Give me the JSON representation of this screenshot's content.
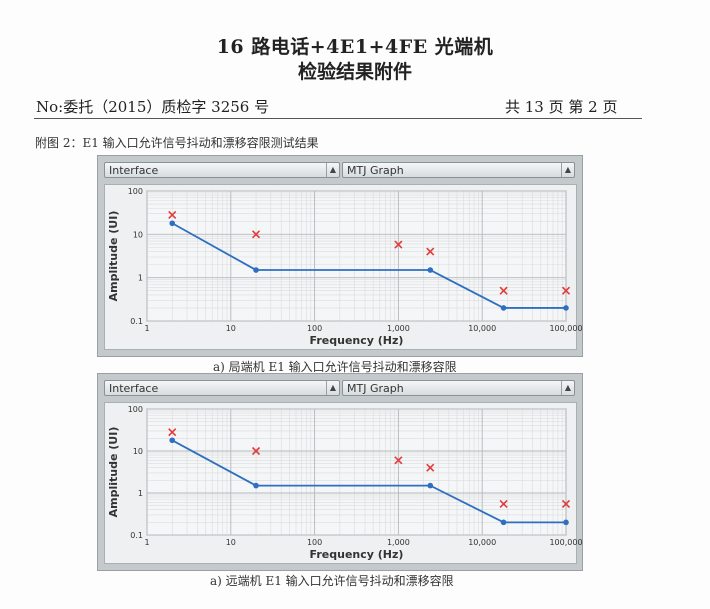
{
  "document": {
    "title_line1": "16 路电话+4E1+4FE 光端机",
    "title_line2": "检验结果附件",
    "doc_number": "No:委托（2015）质检字 3256 号",
    "page_info": "共 13 页  第 2 页",
    "figure_caption": "附图 2：E1 输入口允许信号抖动和漂移容限测试结果"
  },
  "panels": [
    {
      "dropdown_left": "Interface",
      "dropdown_right": "MTJ Graph",
      "caption": "a)  局端机 E1 输入口允许信号抖动和漂移容限"
    },
    {
      "dropdown_left": "Interface",
      "dropdown_right": "MTJ Graph",
      "caption": "a)  远端机 E1 输入口允许信号抖动和漂移容限"
    }
  ],
  "chart_data": [
    {
      "type": "line",
      "xlabel": "Frequency (Hz)",
      "ylabel": "Amplitude (UI)",
      "x_scale": "log",
      "y_scale": "log",
      "xlim": [
        1,
        100000
      ],
      "ylim": [
        0.1,
        100
      ],
      "x_ticks": [
        "1",
        "10",
        "100",
        "1,000",
        "10,000",
        "100,000"
      ],
      "y_ticks": [
        "100",
        "10",
        "1",
        "0.1"
      ],
      "grid": true,
      "series": [
        {
          "kind": "mask",
          "color": "#2e6fc0",
          "x": [
            2,
            20,
            2400,
            18000,
            100000
          ],
          "y": [
            18,
            1.5,
            1.5,
            0.2,
            0.2
          ]
        },
        {
          "kind": "measured",
          "color": "#e23b3b",
          "marker": "x",
          "x": [
            2,
            20,
            1000,
            2400,
            18000,
            100000
          ],
          "y": [
            28,
            10,
            5.8,
            4,
            0.5,
            0.5
          ]
        }
      ]
    },
    {
      "type": "line",
      "xlabel": "Frequency (Hz)",
      "ylabel": "Amplitude (UI)",
      "x_scale": "log",
      "y_scale": "log",
      "xlim": [
        1,
        100000
      ],
      "ylim": [
        0.1,
        100
      ],
      "x_ticks": [
        "1",
        "10",
        "100",
        "1,000",
        "10,000",
        "100,000"
      ],
      "y_ticks": [
        "100",
        "10",
        "1",
        "0.1"
      ],
      "grid": true,
      "series": [
        {
          "kind": "mask",
          "color": "#2e6fc0",
          "x": [
            2,
            20,
            2400,
            18000,
            100000
          ],
          "y": [
            18,
            1.5,
            1.5,
            0.2,
            0.2
          ]
        },
        {
          "kind": "measured",
          "color": "#e23b3b",
          "marker": "x",
          "x": [
            2,
            20,
            1000,
            2400,
            18000,
            100000
          ],
          "y": [
            28,
            10,
            6,
            4,
            0.55,
            0.55
          ]
        }
      ]
    }
  ]
}
